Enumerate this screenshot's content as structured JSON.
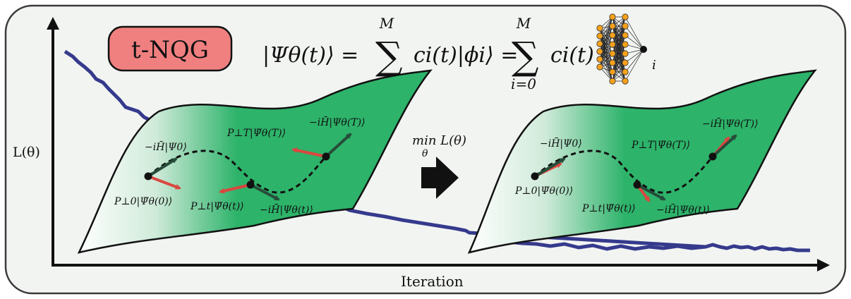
{
  "badge": {
    "label": "t-NQG",
    "fill": "#f08080",
    "stroke": "#111111"
  },
  "equation": {
    "lhs": "|Ψθ(t)⟩ =",
    "sum_top": "M",
    "sum_bottom": "i=0",
    "term1": "ci(t)|ϕi⟩ =",
    "term2": "ci(t)",
    "net_subscript": "i"
  },
  "axes": {
    "ylabel": "L(θ)",
    "xlabel": "Iteration"
  },
  "step": {
    "label": "min L(θ)",
    "sub": "θ"
  },
  "manifold_left": {
    "labels": {
      "h0": "−iH̄|Ψ0⟩",
      "p0": "P⊥0|Ψ̇θ(0)⟩",
      "pT": "P⊥T|Ψ̇θ(T)⟩",
      "hT": "−iH̄|Ψθ(T)⟩",
      "pt": "P⊥t|Ψ̇θ(t)⟩",
      "ht": "−iH̄|Ψθ(t)⟩"
    }
  },
  "manifold_right": {
    "labels": {
      "h0": "−iH̄|Ψ0⟩",
      "p0": "P⊥0|Ψ̇θ(0)⟩",
      "pT": "P⊥T|Ψ̇θ(T)⟩",
      "hT": "−iH̄|Ψθ(T)⟩",
      "pt": "P⊥t|Ψ̇θ(t)⟩",
      "ht": "−iH̄|Ψθ(t)⟩"
    }
  },
  "colors": {
    "loss_curve": "#353a8c",
    "manifold": "#2db36a",
    "red_vector": "#d9473f",
    "dark_vector": "#264d3a",
    "node": "#f7a11a"
  }
}
